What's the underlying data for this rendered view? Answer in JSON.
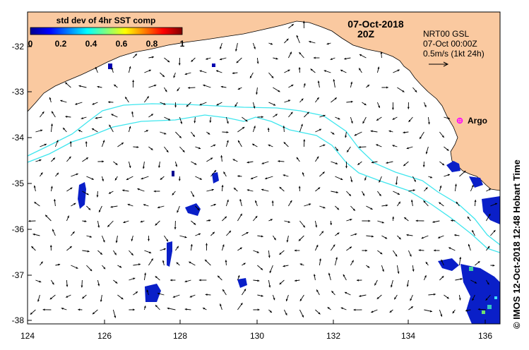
{
  "map": {
    "title_date": "07-Oct-2018",
    "title_time": "20Z",
    "colorbar": {
      "label": "std dev of 4hr SST comp",
      "ticks": [
        "0",
        "0.2",
        "0.4",
        "0.6",
        "0.8",
        "1"
      ]
    },
    "current_info": {
      "line1": "NRT00 GSL",
      "line2": "07-Oct 00:00Z",
      "line3": "0.5m/s (1kt 24h)"
    },
    "station_label": "Argo",
    "x_ticks": [
      "124",
      "126",
      "128",
      "130",
      "132",
      "134",
      "136"
    ],
    "y_ticks": [
      "-32",
      "-33",
      "-34",
      "-35",
      "-36",
      "-37",
      "-38"
    ],
    "credit": "© IMOS 12-Oct-2018 12:48 Hobart Time",
    "colors": {
      "land": "#fac9a0",
      "ocean": "#ffffff",
      "isobath": "#3fe6ee",
      "station": "#ff00ff"
    }
  }
}
